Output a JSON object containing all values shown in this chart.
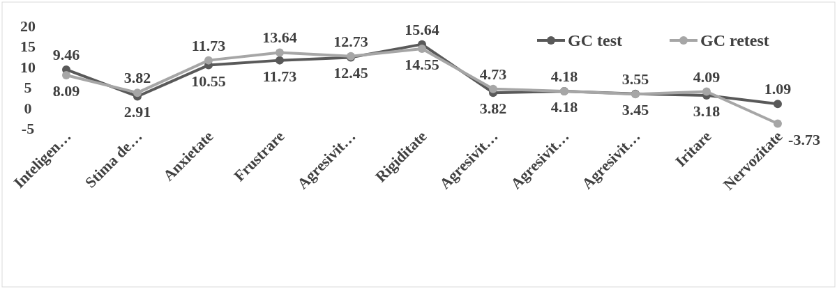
{
  "chart_data": {
    "type": "line",
    "categories": [
      "Inteligen…",
      "Stima de…",
      "Anxietate",
      "Frustrare",
      "Agresivit…",
      "Rigiditate",
      "Agresivit…",
      "Agresivit…",
      "Agresivit…",
      "Iritare",
      "Nervozitate"
    ],
    "series": [
      {
        "name": "GC test",
        "color": "#595959",
        "values": [
          9.46,
          2.91,
          10.55,
          11.73,
          12.45,
          15.64,
          3.82,
          4.18,
          3.55,
          3.18,
          1.09
        ]
      },
      {
        "name": "GC retest",
        "color": "#a6a6a6",
        "values": [
          8.09,
          3.82,
          11.73,
          13.64,
          12.73,
          14.55,
          4.73,
          4.18,
          3.45,
          4.09,
          -3.73
        ]
      }
    ],
    "ylim": [
      -5,
      20
    ],
    "yticks": [
      -5,
      0,
      5,
      10,
      15,
      20
    ],
    "grid": false,
    "legend": "top right",
    "marker": "circle",
    "line_style": "solid",
    "data_labels": true
  }
}
